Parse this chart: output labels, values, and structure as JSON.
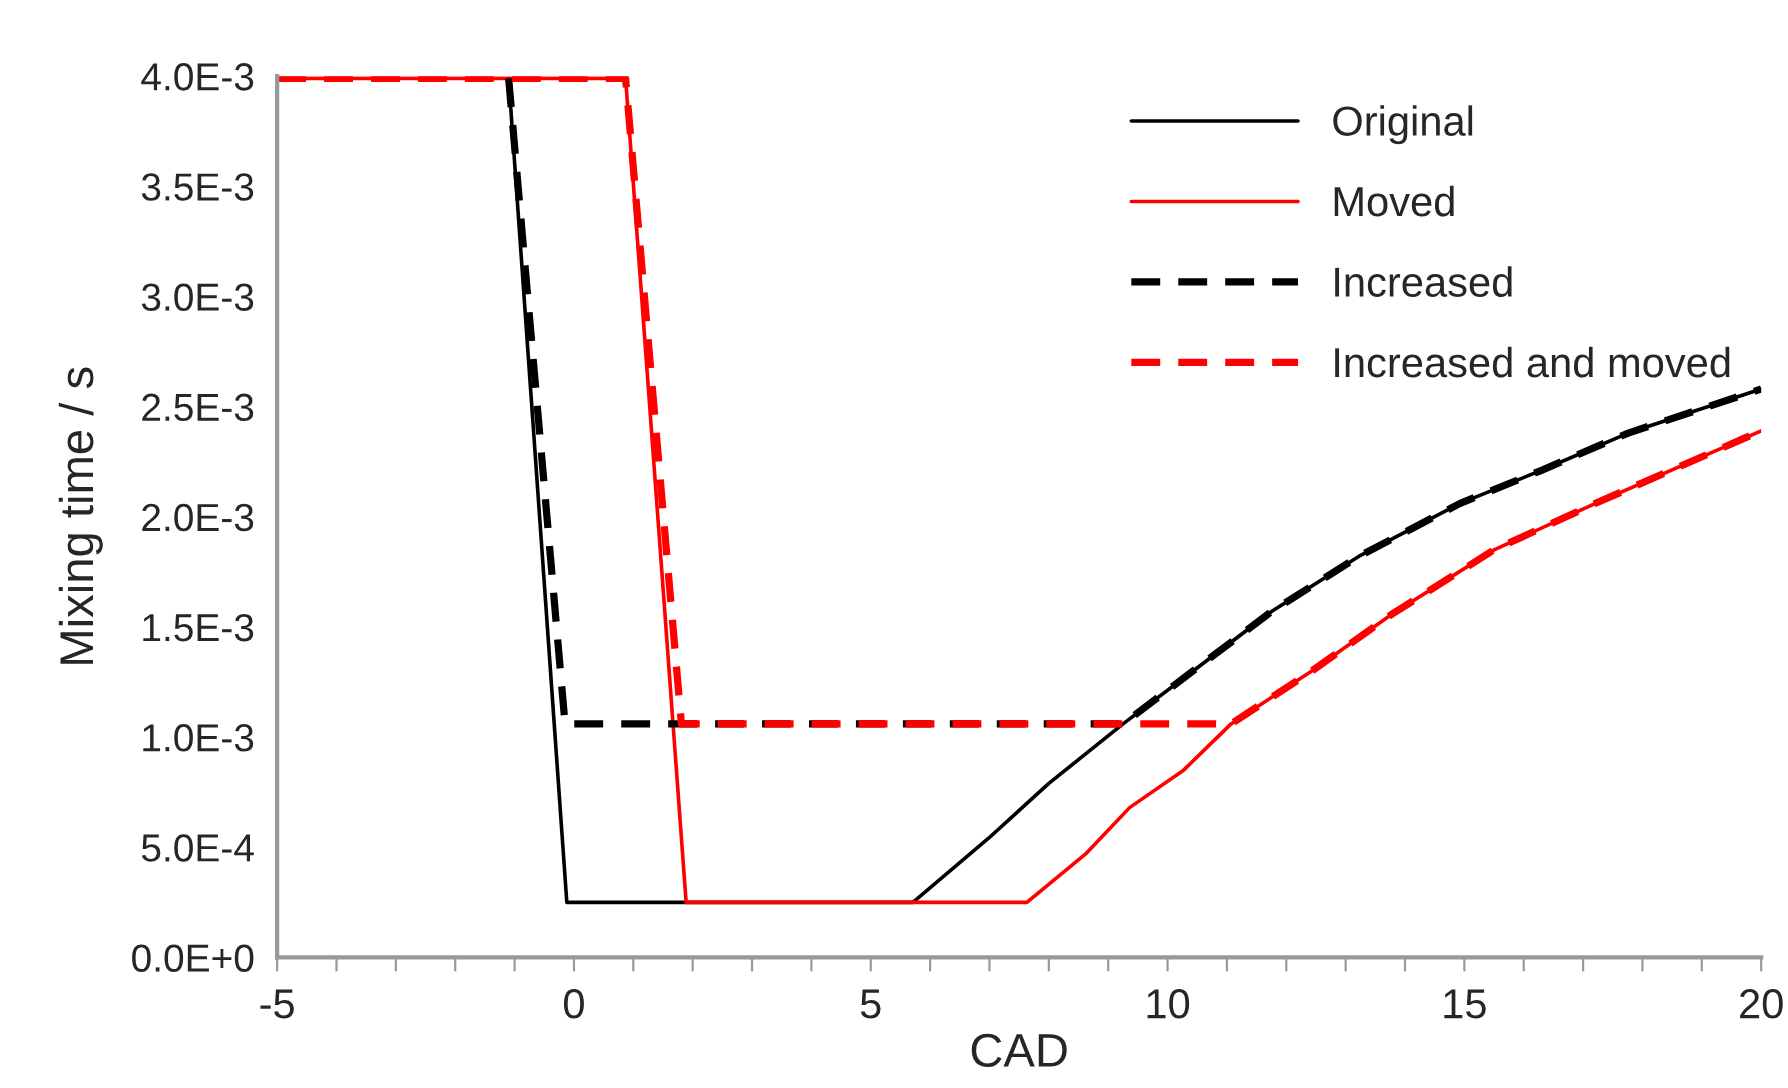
{
  "chart_data": {
    "type": "line",
    "xlabel": "CAD",
    "ylabel": "Mixing time / s",
    "xlim": [
      -5,
      20
    ],
    "xticks": [
      -5,
      {
        "value": -4,
        "label": null
      },
      {
        "value": -3,
        "label": null
      },
      {
        "value": -2,
        "label": null
      },
      {
        "value": -1,
        "label": null
      },
      0,
      {
        "value": 1,
        "label": null
      },
      {
        "value": 2,
        "label": null
      },
      {
        "value": 3,
        "label": null
      },
      {
        "value": 4,
        "label": null
      },
      5,
      {
        "value": 6,
        "label": null
      },
      {
        "value": 7,
        "label": null
      },
      {
        "value": 8,
        "label": null
      },
      {
        "value": 9,
        "label": null
      },
      10,
      {
        "value": 11,
        "label": null
      },
      {
        "value": 12,
        "label": null
      },
      {
        "value": 13,
        "label": null
      },
      {
        "value": 14,
        "label": null
      },
      15,
      {
        "value": 16,
        "label": null
      },
      {
        "value": 17,
        "label": null
      },
      {
        "value": 18,
        "label": null
      },
      {
        "value": 19,
        "label": null
      },
      20
    ],
    "ylim": [
      0,
      0.004
    ],
    "yticks": [
      {
        "value": 0,
        "label": "0.0E+0"
      },
      {
        "value": 0.0005,
        "label": "5.0E-4"
      },
      {
        "value": 0.001,
        "label": "1.0E-3"
      },
      {
        "value": 0.0015,
        "label": "1.5E-3"
      },
      {
        "value": 0.002,
        "label": "2.0E-3"
      },
      {
        "value": 0.0025,
        "label": "2.5E-3"
      },
      {
        "value": 0.003,
        "label": "3.0E-3"
      },
      {
        "value": 0.0035,
        "label": "3.5E-3"
      },
      {
        "value": 0.004,
        "label": "4.0E-3"
      }
    ],
    "grid": false,
    "legend": "top right",
    "marker": "none",
    "series": [
      {
        "name": "Original",
        "color": "#000000",
        "line_style": "solid",
        "x": [
          -1.1,
          -0.12,
          5.71,
          6.98,
          8.0,
          9.25,
          10.38,
          11.75,
          13.22,
          14.92,
          16.29,
          17.76,
          20
        ],
        "values": [
          0.00399,
          0.00025,
          0.00025,
          0.00054,
          0.00079,
          0.00106,
          0.00129,
          0.00157,
          0.00182,
          0.00206,
          0.00221,
          0.00238,
          0.00258
        ]
      },
      {
        "name": "Moved",
        "color": "#ff0000",
        "line_style": "solid",
        "x": [
          -5,
          0.87,
          1.89,
          7.63,
          8.62,
          9.36,
          10.27,
          11.07,
          12.43,
          13.79,
          15.5,
          17.2,
          20
        ],
        "values": [
          0.00399,
          0.00399,
          0.00025,
          0.00025,
          0.00047,
          0.00068,
          0.00085,
          0.00106,
          0.0013,
          0.00156,
          0.00185,
          0.00206,
          0.00239
        ]
      },
      {
        "name": "Increased",
        "color": "#000000",
        "line_style": "dashed",
        "x": [
          -1.1,
          -0.15,
          9.25,
          10.38,
          11.75,
          13.22,
          14.92,
          16.29,
          17.76,
          20
        ],
        "values": [
          0.00399,
          0.00106,
          0.00106,
          0.00129,
          0.00157,
          0.00182,
          0.00206,
          0.00221,
          0.00238,
          0.00258
        ]
      },
      {
        "name": "Increased and moved",
        "color": "#ff0000",
        "line_style": "dashed",
        "x": [
          -5,
          0.87,
          1.81,
          11.07,
          12.43,
          13.79,
          15.5,
          17.2,
          20
        ],
        "values": [
          0.00399,
          0.00399,
          0.00106,
          0.00106,
          0.0013,
          0.00156,
          0.00185,
          0.00206,
          0.00239
        ]
      }
    ]
  }
}
